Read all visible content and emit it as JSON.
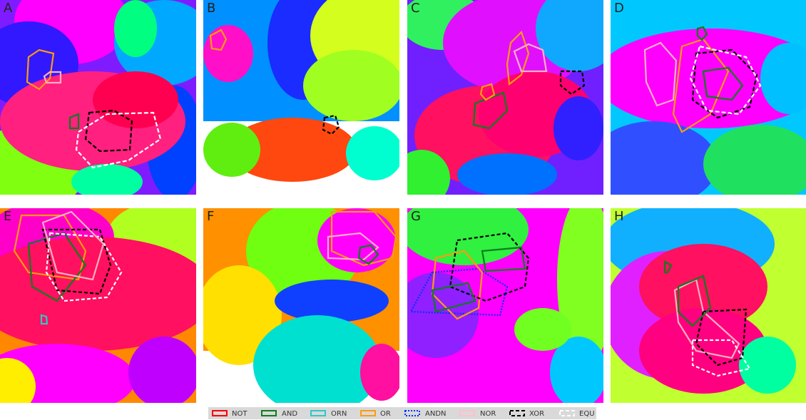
{
  "panels": [
    {
      "label": "A"
    },
    {
      "label": "B"
    },
    {
      "label": "C"
    },
    {
      "label": "D"
    },
    {
      "label": "E"
    },
    {
      "label": "F"
    },
    {
      "label": "G"
    },
    {
      "label": "H"
    }
  ],
  "legend": [
    {
      "label": "NOT"
    },
    {
      "label": "AND"
    },
    {
      "label": "ORN"
    },
    {
      "label": "OR"
    },
    {
      "label": "ANDN"
    },
    {
      "label": "NOR"
    },
    {
      "label": "XOR"
    },
    {
      "label": "EQU"
    }
  ]
}
